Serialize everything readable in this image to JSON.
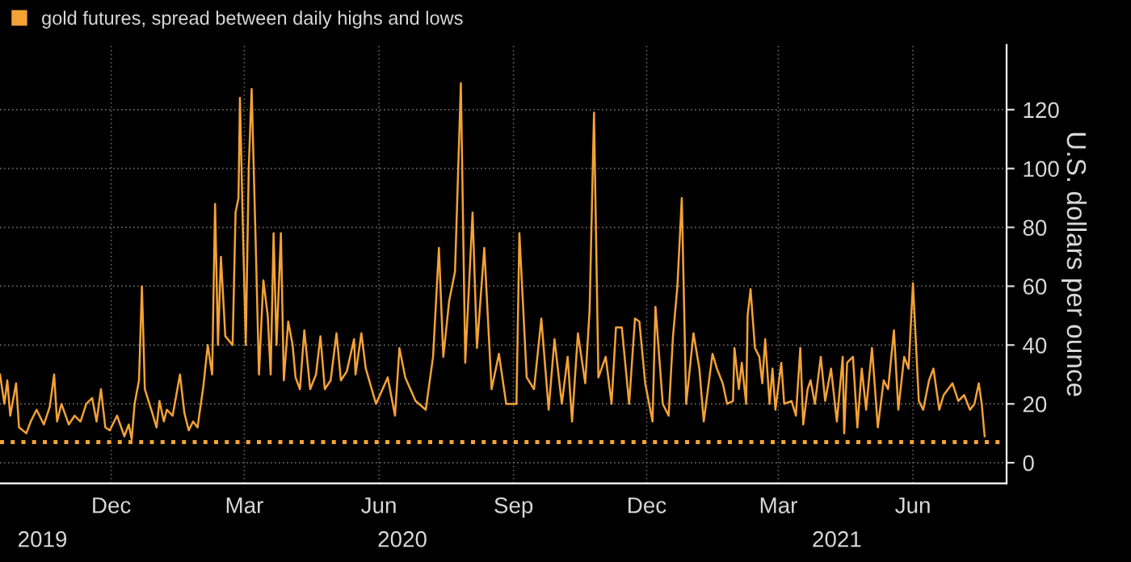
{
  "chart_data": {
    "type": "line",
    "series": [
      {
        "name": "gold futures, spread between daily highs and lows",
        "color": "#f4a235",
        "x": [
          "2019-09-16",
          "2019-09-19",
          "2019-09-21",
          "2019-09-23",
          "2019-09-27",
          "2019-09-29",
          "2019-10-04",
          "2019-10-07",
          "2019-10-11",
          "2019-10-16",
          "2019-10-20",
          "2019-10-23",
          "2019-10-25",
          "2019-10-28",
          "2019-11-02",
          "2019-11-06",
          "2019-11-10",
          "2019-11-14",
          "2019-11-18",
          "2019-11-21",
          "2019-11-24",
          "2019-11-27",
          "2019-11-30",
          "2019-12-05",
          "2019-12-10",
          "2019-12-13",
          "2019-12-15",
          "2019-12-17",
          "2019-12-20",
          "2019-12-22",
          "2019-12-24",
          "2019-12-29",
          "2020-01-01",
          "2020-01-03",
          "2020-01-06",
          "2020-01-08",
          "2020-01-12",
          "2020-01-17",
          "2020-01-20",
          "2020-01-23",
          "2020-01-26",
          "2020-01-29",
          "2020-02-02",
          "2020-02-05",
          "2020-02-08",
          "2020-02-10",
          "2020-02-12",
          "2020-02-14",
          "2020-02-17",
          "2020-02-22",
          "2020-02-24",
          "2020-02-26",
          "2020-02-27",
          "2020-02-29",
          "2020-03-02",
          "2020-03-04",
          "2020-03-06",
          "2020-03-09",
          "2020-03-11",
          "2020-03-14",
          "2020-03-17",
          "2020-03-19",
          "2020-03-21",
          "2020-03-23",
          "2020-03-26",
          "2020-03-28",
          "2020-03-31",
          "2020-04-03",
          "2020-04-05",
          "2020-04-08",
          "2020-04-11",
          "2020-04-15",
          "2020-04-19",
          "2020-04-22",
          "2020-04-25",
          "2020-04-29",
          "2020-05-03",
          "2020-05-06",
          "2020-05-10",
          "2020-05-15",
          "2020-05-16",
          "2020-05-20",
          "2020-05-23",
          "2020-05-30",
          "2020-06-07",
          "2020-06-12",
          "2020-06-15",
          "2020-06-19",
          "2020-06-26",
          "2020-07-03",
          "2020-07-08",
          "2020-07-12",
          "2020-07-15",
          "2020-07-19",
          "2020-07-23",
          "2020-07-27",
          "2020-07-30",
          "2020-08-04",
          "2020-08-07",
          "2020-08-12",
          "2020-08-17",
          "2020-08-22",
          "2020-08-27",
          "2020-09-03",
          "2020-09-05",
          "2020-09-10",
          "2020-09-15",
          "2020-09-20",
          "2020-09-25",
          "2020-09-29",
          "2020-10-04",
          "2020-10-08",
          "2020-10-11",
          "2020-10-15",
          "2020-10-20",
          "2020-10-23",
          "2020-10-26",
          "2020-10-29",
          "2020-11-03",
          "2020-11-07",
          "2020-11-10",
          "2020-11-14",
          "2020-11-19",
          "2020-11-23",
          "2020-11-26",
          "2020-11-30",
          "2020-12-05",
          "2020-12-07",
          "2020-12-12",
          "2020-12-16",
          "2020-12-19",
          "2020-12-22",
          "2020-12-25",
          "2020-12-28",
          "2021-01-02",
          "2021-01-06",
          "2021-01-09",
          "2021-01-15",
          "2021-01-18",
          "2021-01-22",
          "2021-01-25",
          "2021-01-29",
          "2021-01-30",
          "2021-02-02",
          "2021-02-04",
          "2021-02-07",
          "2021-02-08",
          "2021-02-10",
          "2021-02-13",
          "2021-02-16",
          "2021-02-18",
          "2021-02-20",
          "2021-02-23",
          "2021-02-25",
          "2021-02-27",
          "2021-03-03",
          "2021-03-05",
          "2021-03-10",
          "2021-03-13",
          "2021-03-16",
          "2021-03-18",
          "2021-03-21",
          "2021-03-23",
          "2021-03-26",
          "2021-03-30",
          "2021-04-02",
          "2021-04-06",
          "2021-04-10",
          "2021-04-14",
          "2021-04-15",
          "2021-04-17",
          "2021-04-21",
          "2021-04-24",
          "2021-04-27",
          "2021-04-30",
          "2021-05-04",
          "2021-05-08",
          "2021-05-12",
          "2021-05-15",
          "2021-05-19",
          "2021-05-22",
          "2021-05-26",
          "2021-05-29",
          "2021-06-01",
          "2021-06-05",
          "2021-06-08",
          "2021-06-12",
          "2021-06-15",
          "2021-06-19",
          "2021-06-22",
          "2021-06-28",
          "2021-07-02",
          "2021-07-06",
          "2021-07-10",
          "2021-07-13",
          "2021-07-16",
          "2021-07-18",
          "2021-07-20"
        ],
        "values": [
          30,
          20,
          28,
          16,
          27,
          12,
          10,
          14,
          18,
          13,
          19,
          30,
          14,
          20,
          13,
          16,
          14,
          20,
          22,
          14,
          25,
          12,
          11,
          16,
          9,
          13,
          8,
          20,
          28,
          60,
          25,
          17,
          12,
          21,
          14,
          18,
          16,
          30,
          17,
          11,
          14,
          12,
          26,
          40,
          30,
          88,
          40,
          70,
          43,
          40,
          85,
          90,
          124,
          80,
          40,
          100,
          127,
          70,
          30,
          62,
          50,
          30,
          78,
          40,
          78,
          28,
          48,
          40,
          29,
          25,
          45,
          25,
          30,
          43,
          25,
          28,
          44,
          28,
          31,
          42,
          30,
          44,
          32,
          20,
          29,
          16,
          39,
          29,
          21,
          18,
          36,
          73,
          36,
          55,
          65,
          129,
          34,
          85,
          39,
          73,
          25,
          37,
          20,
          20,
          78,
          29,
          25,
          49,
          18,
          42,
          20,
          36,
          14,
          44,
          27,
          52,
          119,
          29,
          36,
          20,
          46,
          46,
          20,
          49,
          48,
          27,
          14,
          53,
          20,
          16,
          43,
          60,
          90,
          20,
          44,
          32,
          14,
          37,
          32,
          27,
          20,
          21,
          39,
          25,
          34,
          20,
          50,
          59,
          39,
          36,
          27,
          42,
          20,
          32,
          18,
          34,
          20,
          21,
          16,
          39,
          13,
          25,
          28,
          20,
          36,
          21,
          32,
          14,
          36,
          10,
          34,
          36,
          12,
          32,
          18,
          39,
          12,
          28,
          25,
          45,
          18,
          36,
          32,
          61,
          21,
          18,
          28,
          32,
          18,
          23,
          27,
          21,
          23,
          18,
          20,
          27,
          20,
          9
        ]
      }
    ],
    "ref_lines": [
      {
        "axis": "y",
        "value": 7,
        "color": "#f4a235",
        "line_style": "dotted"
      }
    ],
    "xlim": [
      "2019-09-16",
      "2021-08-04"
    ],
    "xticks": [
      {
        "value": "2019-12-01",
        "label": "Dec"
      },
      {
        "value": "2020-03-01",
        "label": "Mar"
      },
      {
        "value": "2020-06-01",
        "label": "Jun"
      },
      {
        "value": "2020-09-01",
        "label": "Sep"
      },
      {
        "value": "2020-12-01",
        "label": "Dec"
      },
      {
        "value": "2021-03-01",
        "label": "Mar"
      },
      {
        "value": "2021-06-01",
        "label": "Jun"
      }
    ],
    "x2lim": [
      "2019-09-16",
      "2021-08-04"
    ],
    "x2ticks": [
      {
        "value": "2019-10-15",
        "label": "2019"
      },
      {
        "value": "2020-06-17",
        "label": "2020"
      },
      {
        "value": "2021-04-10",
        "label": "2021"
      }
    ],
    "ylim": [
      -7,
      142
    ],
    "yticks": [
      0,
      20,
      40,
      60,
      80,
      100,
      120
    ],
    "ylabel": "U.S. dollars per ounce",
    "grid": true,
    "legend": "top left",
    "line_style": "solid",
    "marker": "none"
  }
}
